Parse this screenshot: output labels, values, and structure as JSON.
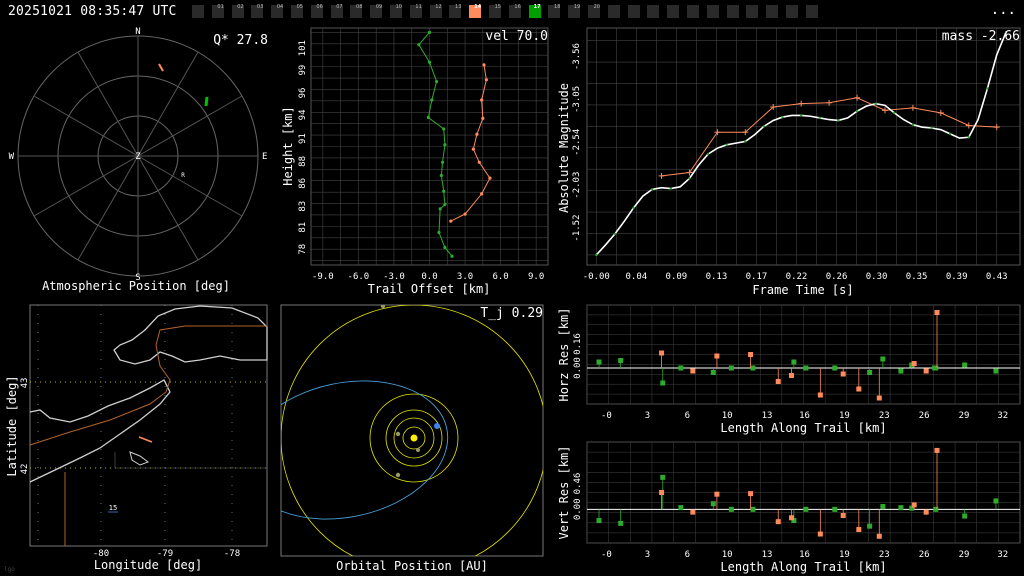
{
  "header": {
    "timestamp": "20251021 08:35:47 UTC",
    "more_label": "...",
    "frames": [
      {
        "label": "",
        "state": "off"
      },
      {
        "label": "01",
        "state": "off"
      },
      {
        "label": "02",
        "state": "off"
      },
      {
        "label": "03",
        "state": "off"
      },
      {
        "label": "04",
        "state": "off"
      },
      {
        "label": "05",
        "state": "off"
      },
      {
        "label": "06",
        "state": "off"
      },
      {
        "label": "07",
        "state": "off"
      },
      {
        "label": "08",
        "state": "off"
      },
      {
        "label": "09",
        "state": "off"
      },
      {
        "label": "10",
        "state": "off"
      },
      {
        "label": "11",
        "state": "off"
      },
      {
        "label": "12",
        "state": "off"
      },
      {
        "label": "13",
        "state": "off"
      },
      {
        "label": "14",
        "state": "orange"
      },
      {
        "label": "15",
        "state": "off"
      },
      {
        "label": "16",
        "state": "off"
      },
      {
        "label": "17",
        "state": "green"
      },
      {
        "label": "18",
        "state": "off"
      },
      {
        "label": "19",
        "state": "off"
      },
      {
        "label": "20",
        "state": "off"
      },
      {
        "label": "",
        "state": "off"
      },
      {
        "label": "",
        "state": "off"
      },
      {
        "label": "",
        "state": "off"
      },
      {
        "label": "",
        "state": "off"
      },
      {
        "label": "",
        "state": "off"
      },
      {
        "label": "",
        "state": "off"
      },
      {
        "label": "",
        "state": "off"
      },
      {
        "label": "",
        "state": "off"
      },
      {
        "label": "",
        "state": "off"
      },
      {
        "label": "",
        "state": "off"
      },
      {
        "label": "",
        "state": "off"
      }
    ]
  },
  "colors": {
    "orange": "#ff8a5c",
    "green": "#2faa2f",
    "blue": "#4aa3df",
    "yellow": "#e6e600",
    "grid": "#444444"
  },
  "watermark": "lgo",
  "chart_data": [
    {
      "type": "polar",
      "id": "atmo",
      "xlabel": "Atmospheric Position [deg]",
      "annotation": "Q* 27.8",
      "compass": {
        "N": "N",
        "E": "E",
        "S": "S",
        "W": "W",
        "Z": "Z",
        "R": "R"
      }
    },
    {
      "type": "line",
      "id": "height",
      "xlabel": "Trail Offset [km]",
      "ylabel": "Height [km]",
      "annotation": "vel 70.0",
      "xticks": [
        "-9.0",
        "-6.0",
        "-3.0",
        "0.0",
        "3.0",
        "6.0",
        "9.0"
      ],
      "yticks": [
        "78",
        "81",
        "83",
        "86",
        "88",
        "91",
        "94",
        "96",
        "99",
        "101"
      ],
      "xlim": [
        -10,
        10
      ],
      "ylim": [
        76.5,
        103.5
      ],
      "series": [
        {
          "color": "orange",
          "x": [
            4.6,
            4.8,
            4.4,
            4.5,
            4.0,
            3.7,
            4.2,
            5.1,
            4.4,
            3.0,
            1.8
          ],
          "y": [
            99.3,
            97.6,
            95.3,
            93.2,
            91.4,
            89.7,
            88.2,
            86.4,
            84.6,
            82.3,
            81.5
          ]
        },
        {
          "color": "green",
          "x": [
            0.0,
            -0.9,
            0.0,
            0.6,
            0.2,
            -0.1,
            1.2,
            1.3,
            1.1,
            1.0,
            1.2,
            1.3,
            0.9,
            0.8,
            1.3,
            1.9
          ],
          "y": [
            103.0,
            101.6,
            99.6,
            97.4,
            95.3,
            93.3,
            92.0,
            90.2,
            88.2,
            86.7,
            84.9,
            83.4,
            82.9,
            80.2,
            78.5,
            77.5
          ]
        }
      ]
    },
    {
      "type": "line",
      "id": "mag",
      "xlabel": "Frame Time [s]",
      "ylabel": "Absolute Magnitude",
      "annotation": "mass -2.66",
      "xticks": [
        "-0.00",
        "0.04",
        "0.09",
        "0.13",
        "0.17",
        "0.22",
        "0.26",
        "0.30",
        "0.35",
        "0.39",
        "0.43"
      ],
      "yticks": [
        "-3.56",
        "-3.05",
        "-2.54",
        "-2.03",
        "-1.52"
      ],
      "xlim": [
        -0.01,
        0.455
      ],
      "ylim": [
        -1.08,
        -3.9
      ],
      "series": [
        {
          "color": "orange",
          "x": [
            0.07,
            0.1,
            0.13,
            0.16,
            0.19,
            0.22,
            0.25,
            0.28,
            0.31,
            0.34,
            0.37,
            0.4,
            0.43
          ],
          "y": [
            -2.14,
            -2.18,
            -2.66,
            -2.66,
            -2.96,
            -3.0,
            -3.01,
            -3.07,
            -2.92,
            -2.95,
            -2.89,
            -2.74,
            -2.72
          ]
        },
        {
          "color": "white",
          "x": [
            0.0,
            0.01,
            0.02,
            0.03,
            0.04,
            0.05,
            0.06,
            0.07,
            0.08,
            0.09,
            0.1,
            0.11,
            0.12,
            0.13,
            0.14,
            0.15,
            0.16,
            0.17,
            0.18,
            0.19,
            0.2,
            0.21,
            0.22,
            0.23,
            0.24,
            0.25,
            0.26,
            0.27,
            0.28,
            0.29,
            0.3,
            0.31,
            0.32,
            0.33,
            0.34,
            0.35,
            0.36,
            0.37,
            0.38,
            0.39,
            0.4,
            0.41,
            0.42,
            0.43,
            0.44
          ],
          "y": [
            -1.2,
            -1.32,
            -1.45,
            -1.6,
            -1.76,
            -1.9,
            -1.98,
            -2.0,
            -1.99,
            -2.01,
            -2.11,
            -2.27,
            -2.4,
            -2.47,
            -2.51,
            -2.53,
            -2.55,
            -2.63,
            -2.73,
            -2.8,
            -2.84,
            -2.86,
            -2.86,
            -2.85,
            -2.83,
            -2.81,
            -2.8,
            -2.83,
            -2.91,
            -2.97,
            -3.0,
            -2.98,
            -2.89,
            -2.81,
            -2.75,
            -2.72,
            -2.71,
            -2.69,
            -2.64,
            -2.59,
            -2.6,
            -2.81,
            -3.18,
            -3.58,
            -3.85
          ]
        }
      ]
    },
    {
      "type": "map",
      "id": "geo",
      "xlabel": "Longitude [deg]",
      "ylabel": "Latitude [deg]",
      "xticks": [
        "-80",
        "-79",
        "-78"
      ],
      "yticks": [
        "43",
        "42"
      ],
      "inner_label": "15"
    },
    {
      "type": "orbit",
      "id": "orbit",
      "xlabel": "Orbital Position [AU]",
      "annotation": "T_j 0.29"
    },
    {
      "type": "scatter",
      "id": "horz",
      "xlabel": "Length Along Trail [km]",
      "ylabel": "Horz Res [km]",
      "xticks": [
        "-0",
        "3",
        "6",
        "10",
        "13",
        "16",
        "19",
        "23",
        "26",
        "29",
        "32"
      ],
      "yticks": [
        "0.16",
        "0.00"
      ],
      "xlim": [
        -2,
        34
      ],
      "ylim": [
        -0.24,
        0.42
      ],
      "series": [
        {
          "color": "green",
          "x": [
            -1.0,
            0.8,
            4.3,
            5.8,
            8.5,
            10.0,
            11.8,
            15.2,
            16.2,
            18.6,
            21.5,
            22.6,
            24.1,
            25.0,
            26.9,
            27.0,
            29.4,
            32.0
          ],
          "y": [
            0.04,
            0.05,
            -0.1,
            0.0,
            -0.03,
            0.0,
            0.0,
            0.04,
            0.0,
            0.0,
            -0.03,
            0.06,
            -0.02,
            0.02,
            0.0,
            0.0,
            0.02,
            -0.02
          ]
        },
        {
          "color": "orange",
          "x": [
            4.2,
            6.8,
            8.8,
            11.6,
            13.9,
            15.0,
            17.4,
            19.3,
            20.6,
            22.3,
            25.2,
            26.2,
            27.1
          ],
          "y": [
            0.1,
            -0.02,
            0.08,
            0.09,
            -0.09,
            -0.05,
            -0.18,
            -0.04,
            -0.14,
            -0.2,
            0.03,
            -0.02,
            0.37
          ]
        }
      ]
    },
    {
      "type": "scatter",
      "id": "vert",
      "xlabel": "Length Along Trail [km]",
      "ylabel": "Vert Res [km]",
      "xticks": [
        "-0",
        "3",
        "6",
        "10",
        "13",
        "16",
        "19",
        "23",
        "26",
        "29",
        "32"
      ],
      "yticks": [
        "0.46",
        "0.00"
      ],
      "xlim": [
        -2,
        34
      ],
      "ylim": [
        -0.6,
        1.2
      ],
      "series": [
        {
          "color": "green",
          "x": [
            -1.0,
            0.8,
            4.3,
            5.8,
            8.5,
            10.0,
            11.8,
            15.2,
            16.2,
            18.6,
            21.5,
            22.6,
            24.1,
            25.0,
            27.0,
            29.4,
            32.0
          ],
          "y": [
            -0.2,
            -0.25,
            0.57,
            0.03,
            0.1,
            0.0,
            0.0,
            -0.2,
            0.0,
            0.0,
            -0.3,
            0.05,
            0.03,
            0.02,
            0.0,
            -0.12,
            0.15
          ]
        },
        {
          "color": "orange",
          "x": [
            4.2,
            6.8,
            8.8,
            11.6,
            13.9,
            15.0,
            17.4,
            19.3,
            20.6,
            22.3,
            25.2,
            26.2,
            27.1
          ],
          "y": [
            0.3,
            -0.05,
            0.27,
            0.28,
            -0.22,
            -0.15,
            -0.44,
            -0.11,
            -0.36,
            -0.48,
            0.08,
            -0.05,
            1.05
          ]
        }
      ]
    }
  ]
}
